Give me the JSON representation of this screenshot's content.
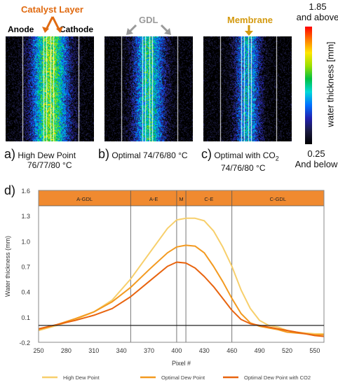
{
  "panels": [
    {
      "letter": "a)",
      "caption_line1": "High Dew Point",
      "caption_line2": "76/77/80 °C"
    },
    {
      "letter": "b)",
      "caption_line1": "Optimal 74/76/80 °C",
      "caption_line2": ""
    },
    {
      "letter": "c)",
      "caption_line1": "Optimal with CO",
      "caption_sub": "2",
      "caption_line2": "74/76/80 °C"
    }
  ],
  "annotations": {
    "catalyst_layer": "Catalyst Layer",
    "anode": "Anode",
    "cathode": "Cathode",
    "gdl": "GDL",
    "membrane": "Membrane"
  },
  "colorbar": {
    "top_value": "1.85",
    "top_text": "and above",
    "bottom_value": "0.25",
    "bottom_text": "And below",
    "label": "water thickness [mm]",
    "colors": [
      "#ff0000",
      "#ff7a00",
      "#ffe600",
      "#9be000",
      "#00c040",
      "#00d8d8",
      "#0070ff",
      "#2020b0",
      "#1a1a40",
      "#000000"
    ]
  },
  "chart_letter": "d)",
  "chart_data": {
    "type": "line",
    "xlabel": "Pixel #",
    "ylabel": "Water thickness (mm)",
    "xlim": [
      250,
      560
    ],
    "ylim": [
      -0.2,
      1.6
    ],
    "xticks": [
      250,
      280,
      310,
      340,
      370,
      400,
      430,
      460,
      490,
      520,
      550
    ],
    "yticks": [
      -0.2,
      0.1,
      0.4,
      0.7,
      1.0,
      1.3,
      1.6
    ],
    "ytick_labels": [
      "-0.2",
      "0.1",
      "0.4",
      "0.7",
      "1.0",
      "1.3",
      "1.6"
    ],
    "zero_line": 0.0,
    "region_boundaries": [
      350,
      400,
      410,
      460
    ],
    "regions": [
      {
        "label": "A-GDL",
        "x0": 250,
        "x1": 350
      },
      {
        "label": "A-E",
        "x0": 350,
        "x1": 400
      },
      {
        "label": "M",
        "x0": 400,
        "x1": 410
      },
      {
        "label": "C-E",
        "x0": 410,
        "x1": 460
      },
      {
        "label": "C-GDL",
        "x0": 460,
        "x1": 560
      }
    ],
    "series": [
      {
        "name": "High Dew Point",
        "color": "#f7cf6b",
        "x": [
          250,
          270,
          290,
          310,
          330,
          350,
          370,
          390,
          400,
          410,
          420,
          430,
          440,
          450,
          460,
          470,
          480,
          490,
          500,
          510,
          520,
          530,
          540,
          550,
          560
        ],
        "y": [
          -0.06,
          0.0,
          0.07,
          0.16,
          0.3,
          0.55,
          0.85,
          1.15,
          1.25,
          1.27,
          1.27,
          1.24,
          1.12,
          0.93,
          0.7,
          0.42,
          0.2,
          0.06,
          0.0,
          -0.02,
          -0.06,
          -0.08,
          -0.09,
          -0.1,
          -0.1
        ]
      },
      {
        "name": "Optimal Dew Point",
        "color": "#f39a20",
        "x": [
          250,
          270,
          290,
          310,
          330,
          350,
          370,
          390,
          400,
          410,
          420,
          430,
          440,
          450,
          460,
          470,
          480,
          490,
          500,
          510,
          520,
          530,
          540,
          550,
          560
        ],
        "y": [
          -0.05,
          0.01,
          0.08,
          0.16,
          0.28,
          0.45,
          0.66,
          0.86,
          0.93,
          0.95,
          0.94,
          0.86,
          0.7,
          0.52,
          0.32,
          0.14,
          0.03,
          -0.01,
          -0.03,
          -0.05,
          -0.08,
          -0.09,
          -0.1,
          -0.11,
          -0.11
        ]
      },
      {
        "name": "Optimal Dew Point with CO2",
        "color": "#e8640f",
        "x": [
          250,
          270,
          290,
          310,
          330,
          350,
          370,
          390,
          400,
          410,
          420,
          430,
          440,
          450,
          460,
          470,
          480,
          490,
          500,
          510,
          520,
          530,
          540,
          550,
          560
        ],
        "y": [
          -0.04,
          0.01,
          0.06,
          0.12,
          0.2,
          0.34,
          0.52,
          0.7,
          0.75,
          0.74,
          0.68,
          0.58,
          0.46,
          0.32,
          0.18,
          0.07,
          0.02,
          0.0,
          -0.02,
          -0.04,
          -0.06,
          -0.08,
          -0.1,
          -0.12,
          -0.13
        ]
      }
    ],
    "legend_position": "bottom"
  }
}
